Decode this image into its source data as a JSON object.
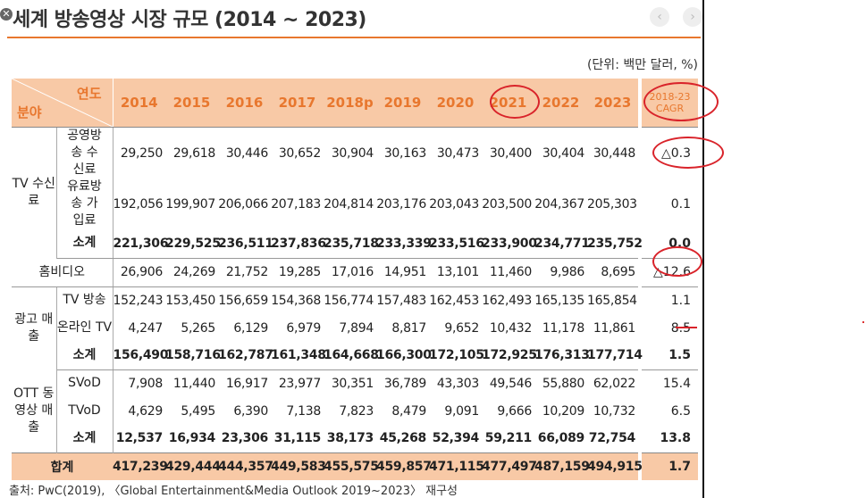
{
  "title": "세계 방송영상 시장 규모 (2014 ~ 2023)",
  "unit_note": "(단위: 백만 달러, %)",
  "source": "출처: PwC(2019), 〈Global Entertainment&Media Outlook 2019~2023〉 재구성",
  "header": {
    "corner_top": "연도",
    "corner_bottom": "분야",
    "years": [
      "2014",
      "2015",
      "2016",
      "2017",
      "2018p",
      "2019",
      "2020",
      "2021",
      "2022",
      "2023"
    ],
    "cagr": "2018-23 CAGR"
  },
  "groups": {
    "tv": "TV 수신료",
    "ad": "광고 매출",
    "ott": "OTT 동영상 매출"
  },
  "rows": {
    "public": {
      "label": "공영방송 수신료",
      "values": [
        "29,250",
        "29,618",
        "30,446",
        "30,652",
        "30,904",
        "30,163",
        "30,473",
        "30,400",
        "30,404",
        "30,448"
      ],
      "cagr": "△0.3"
    },
    "paid": {
      "label": "유료방송 가입료",
      "values": [
        "192,056",
        "199,907",
        "206,066",
        "207,183",
        "204,814",
        "203,176",
        "203,043",
        "203,500",
        "204,367",
        "205,303"
      ],
      "cagr": "0.1"
    },
    "tv_sum": {
      "label": "소계",
      "values": [
        "221,306",
        "229,525",
        "236,511",
        "237,836",
        "235,718",
        "233,339",
        "233,516",
        "233,900",
        "234,771",
        "235,752"
      ],
      "cagr": "0.0"
    },
    "home": {
      "label": "홈비디오",
      "values": [
        "26,906",
        "24,269",
        "21,752",
        "19,285",
        "17,016",
        "14,951",
        "13,101",
        "11,460",
        "9,986",
        "8,695"
      ],
      "cagr": "△12.6"
    },
    "tv_ad": {
      "label": "TV 방송",
      "values": [
        "152,243",
        "153,450",
        "156,659",
        "154,368",
        "156,774",
        "157,483",
        "162,453",
        "162,493",
        "165,135",
        "165,854"
      ],
      "cagr": "1.1"
    },
    "online_ad": {
      "label": "온라인 TV",
      "values": [
        "4,247",
        "5,265",
        "6,129",
        "6,979",
        "7,894",
        "8,817",
        "9,652",
        "10,432",
        "11,178",
        "11,861"
      ],
      "cagr": "8.5"
    },
    "ad_sum": {
      "label": "소계",
      "values": [
        "156,490",
        "158,716",
        "162,787",
        "161,348",
        "164,668",
        "166,300",
        "172,105",
        "172,925",
        "176,313",
        "177,714"
      ],
      "cagr": "1.5"
    },
    "svod": {
      "label": "SVoD",
      "values": [
        "7,908",
        "11,440",
        "16,917",
        "23,977",
        "30,351",
        "36,789",
        "43,303",
        "49,546",
        "55,880",
        "62,022"
      ],
      "cagr": "15.4"
    },
    "tvod": {
      "label": "TVoD",
      "values": [
        "4,629",
        "5,495",
        "6,390",
        "7,138",
        "7,823",
        "8,479",
        "9,091",
        "9,666",
        "10,209",
        "10,732"
      ],
      "cagr": "6.5"
    },
    "ott_sum": {
      "label": "소계",
      "values": [
        "12,537",
        "16,934",
        "23,306",
        "31,115",
        "38,173",
        "45,268",
        "52,394",
        "59,211",
        "66,089",
        "72,754"
      ],
      "cagr": "13.8"
    },
    "total": {
      "label": "합계",
      "values": [
        "417,239",
        "429,444",
        "444,357",
        "449,583",
        "455,575",
        "459,857",
        "471,115",
        "477,497",
        "487,159",
        "494,915"
      ],
      "cagr": "1.7"
    }
  },
  "colors": {
    "accent": "#e8772e",
    "header_bg": "#f8c9a6",
    "annotation": "#d9232a"
  }
}
